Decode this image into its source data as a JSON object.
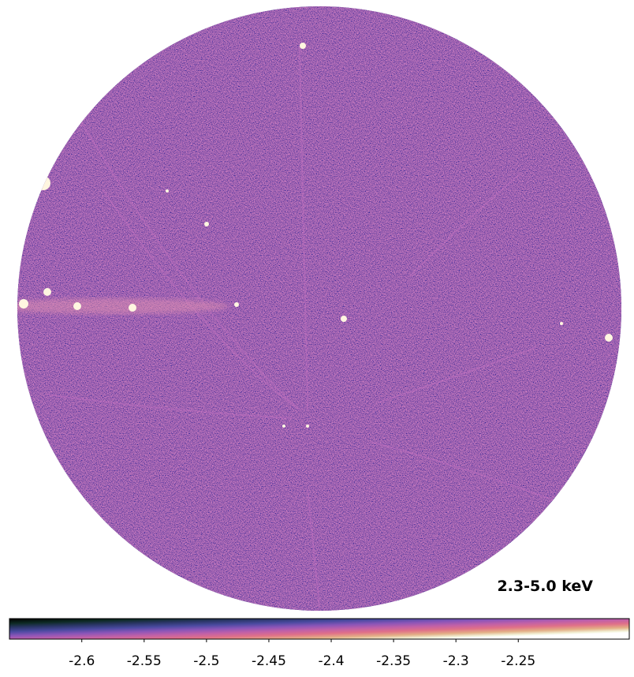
{
  "chart_data": {
    "type": "skymap",
    "title": "2.3-5.0 keV",
    "clim": [
      -2.658,
      -2.161
    ],
    "cticks": [
      -2.6,
      -2.55,
      -2.5,
      -2.45,
      -2.4,
      -2.35,
      -2.3,
      -2.25
    ]
  }
}
